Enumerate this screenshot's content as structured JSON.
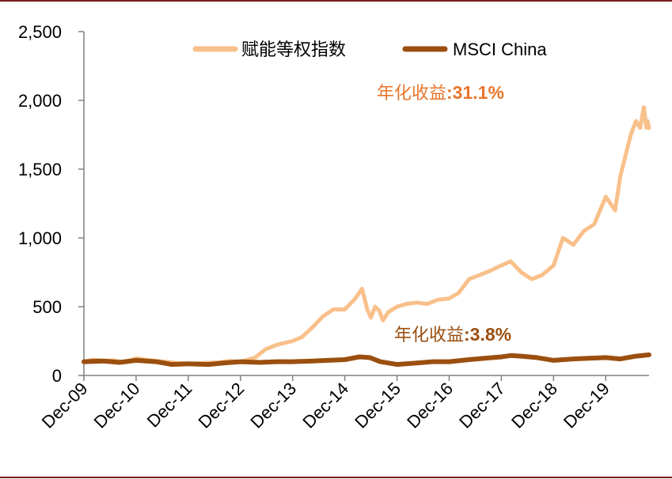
{
  "chart_data": {
    "type": "line",
    "title": "",
    "xlabel": "",
    "ylabel": "",
    "ylim": [
      0,
      2500
    ],
    "yticks": [
      0,
      500,
      1000,
      1500,
      2000,
      2500
    ],
    "ytick_labels": [
      "0",
      "500",
      "1,000",
      "1,500",
      "2,000",
      "2,500"
    ],
    "xtick_labels": [
      "Dec-09",
      "Dec-10",
      "Dec-11",
      "Dec-12",
      "Dec-13",
      "Dec-14",
      "Dec-15",
      "Dec-16",
      "Dec-17",
      "Dec-18",
      "Dec-19"
    ],
    "xlim": [
      2009.92,
      2020.75
    ],
    "grid": false,
    "legend_position": "top",
    "series": [
      {
        "name": "赋能等权指数",
        "color": "#f8c08a",
        "x": [
          2009.92,
          2010.1,
          2010.3,
          2010.5,
          2010.7,
          2010.92,
          2011.2,
          2011.5,
          2011.7,
          2011.92,
          2012.2,
          2012.5,
          2012.7,
          2012.92,
          2013.2,
          2013.4,
          2013.6,
          2013.75,
          2013.92,
          2014.1,
          2014.3,
          2014.5,
          2014.7,
          2014.92,
          2015.1,
          2015.25,
          2015.35,
          2015.42,
          2015.5,
          2015.58,
          2015.65,
          2015.75,
          2015.92,
          2016.1,
          2016.3,
          2016.5,
          2016.7,
          2016.92,
          2017.1,
          2017.3,
          2017.5,
          2017.7,
          2017.92,
          2018.1,
          2018.3,
          2018.5,
          2018.7,
          2018.92,
          2019.1,
          2019.3,
          2019.5,
          2019.7,
          2019.92,
          2020.1,
          2020.2,
          2020.3,
          2020.4,
          2020.5,
          2020.58,
          2020.65,
          2020.7,
          2020.72,
          2020.75
        ],
        "y": [
          100,
          115,
          105,
          110,
          95,
          125,
          110,
          100,
          90,
          85,
          90,
          95,
          105,
          100,
          130,
          190,
          220,
          235,
          250,
          280,
          350,
          430,
          480,
          480,
          550,
          630,
          480,
          420,
          500,
          470,
          400,
          460,
          500,
          520,
          530,
          520,
          550,
          560,
          600,
          700,
          730,
          760,
          800,
          830,
          750,
          700,
          730,
          800,
          1000,
          950,
          1050,
          1100,
          1300,
          1200,
          1450,
          1600,
          1750,
          1850,
          1800,
          1950,
          1800,
          1850,
          1800
        ],
        "annotation": "年化收益:31.1%"
      },
      {
        "name": "MSCI China",
        "color": "#9b4f0f",
        "x": [
          2009.92,
          2010.3,
          2010.6,
          2010.92,
          2011.3,
          2011.6,
          2011.92,
          2012.3,
          2012.6,
          2012.92,
          2013.3,
          2013.6,
          2013.92,
          2014.3,
          2014.6,
          2014.92,
          2015.2,
          2015.4,
          2015.6,
          2015.92,
          2016.3,
          2016.6,
          2016.92,
          2017.3,
          2017.6,
          2017.92,
          2018.1,
          2018.3,
          2018.6,
          2018.92,
          2019.3,
          2019.6,
          2019.92,
          2020.2,
          2020.5,
          2020.75
        ],
        "y": [
          100,
          105,
          95,
          110,
          100,
          80,
          85,
          80,
          90,
          100,
          95,
          100,
          100,
          105,
          110,
          115,
          135,
          130,
          100,
          80,
          90,
          100,
          100,
          115,
          125,
          135,
          145,
          140,
          130,
          110,
          120,
          125,
          130,
          120,
          140,
          150
        ],
        "annotation": "年化收益:3.8%"
      }
    ],
    "annotations": [
      {
        "label": "年化收益",
        "value": ":31.1%",
        "color": "#e8762c"
      },
      {
        "label": "年化收益",
        "value": ":3.8%",
        "color": "#9b4f0f"
      }
    ]
  }
}
